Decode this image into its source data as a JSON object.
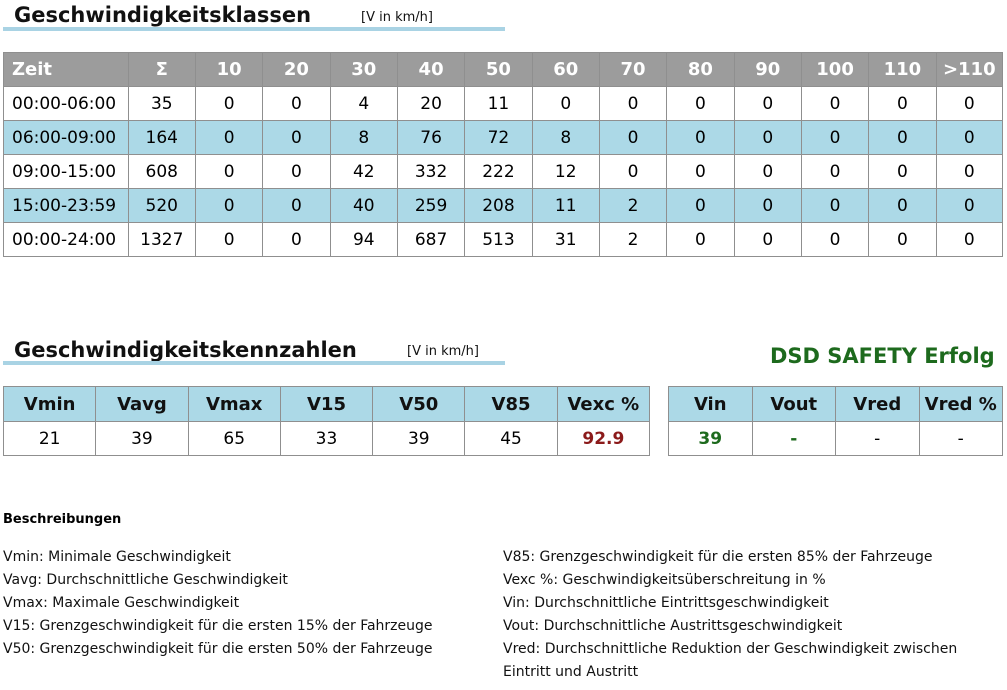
{
  "classes": {
    "title": "Geschwindigkeitsklassen",
    "unit": "[V in km/h]",
    "headers": [
      "Zeit",
      "Σ",
      "10",
      "20",
      "30",
      "40",
      "50",
      "60",
      "70",
      "80",
      "90",
      "100",
      "110",
      ">110"
    ],
    "rows": [
      [
        "00:00-06:00",
        "35",
        "0",
        "0",
        "4",
        "20",
        "11",
        "0",
        "0",
        "0",
        "0",
        "0",
        "0",
        "0"
      ],
      [
        "06:00-09:00",
        "164",
        "0",
        "0",
        "8",
        "76",
        "72",
        "8",
        "0",
        "0",
        "0",
        "0",
        "0",
        "0"
      ],
      [
        "09:00-15:00",
        "608",
        "0",
        "0",
        "42",
        "332",
        "222",
        "12",
        "0",
        "0",
        "0",
        "0",
        "0",
        "0"
      ],
      [
        "15:00-23:59",
        "520",
        "0",
        "0",
        "40",
        "259",
        "208",
        "11",
        "2",
        "0",
        "0",
        "0",
        "0",
        "0"
      ],
      [
        "00:00-24:00",
        "1327",
        "0",
        "0",
        "94",
        "687",
        "513",
        "31",
        "2",
        "0",
        "0",
        "0",
        "0",
        "0"
      ]
    ]
  },
  "kennzahlen": {
    "title": "Geschwindigkeitskennzahlen",
    "unit": "[V in km/h]",
    "headers": [
      "Vmin",
      "Vavg",
      "Vmax",
      "V15",
      "V50",
      "V85",
      "Vexc %"
    ],
    "values": [
      "21",
      "39",
      "65",
      "33",
      "39",
      "45",
      "92.9"
    ]
  },
  "dsd": {
    "title": "DSD SAFETY Erfolg",
    "headers": [
      "Vin",
      "Vout",
      "Vred",
      "Vred %"
    ],
    "values": [
      "39",
      "-",
      "-",
      "-"
    ]
  },
  "descriptions": {
    "title": "Beschreibungen",
    "left": [
      "Vmin: Minimale Geschwindigkeit",
      "Vavg: Durchschnittliche Geschwindigkeit",
      "Vmax: Maximale Geschwindigkeit",
      "V15: Grenzgeschwindigkeit für die ersten 15% der Fahrzeuge",
      "V50: Grenzgeschwindigkeit für die ersten 50% der Fahrzeuge"
    ],
    "right": [
      "V85: Grenzgeschwindigkeit für die ersten 85% der Fahrzeuge",
      "Vexc %: Geschwindigkeitsüberschreitung in %",
      "Vin: Durchschnittliche Eintrittsgeschwindigkeit",
      "Vout: Durchschnittliche Austrittsgeschwindigkeit",
      "Vred: Durchschnittliche Reduktion der Geschwindigkeit zwischen",
      "Eintritt und Austritt"
    ]
  },
  "colors": {
    "header_gray": "#9c9c9c",
    "stripe_blue": "#acd9e7",
    "vexc_red": "#8b1a1a",
    "dsd_green": "#1d6a1d"
  }
}
